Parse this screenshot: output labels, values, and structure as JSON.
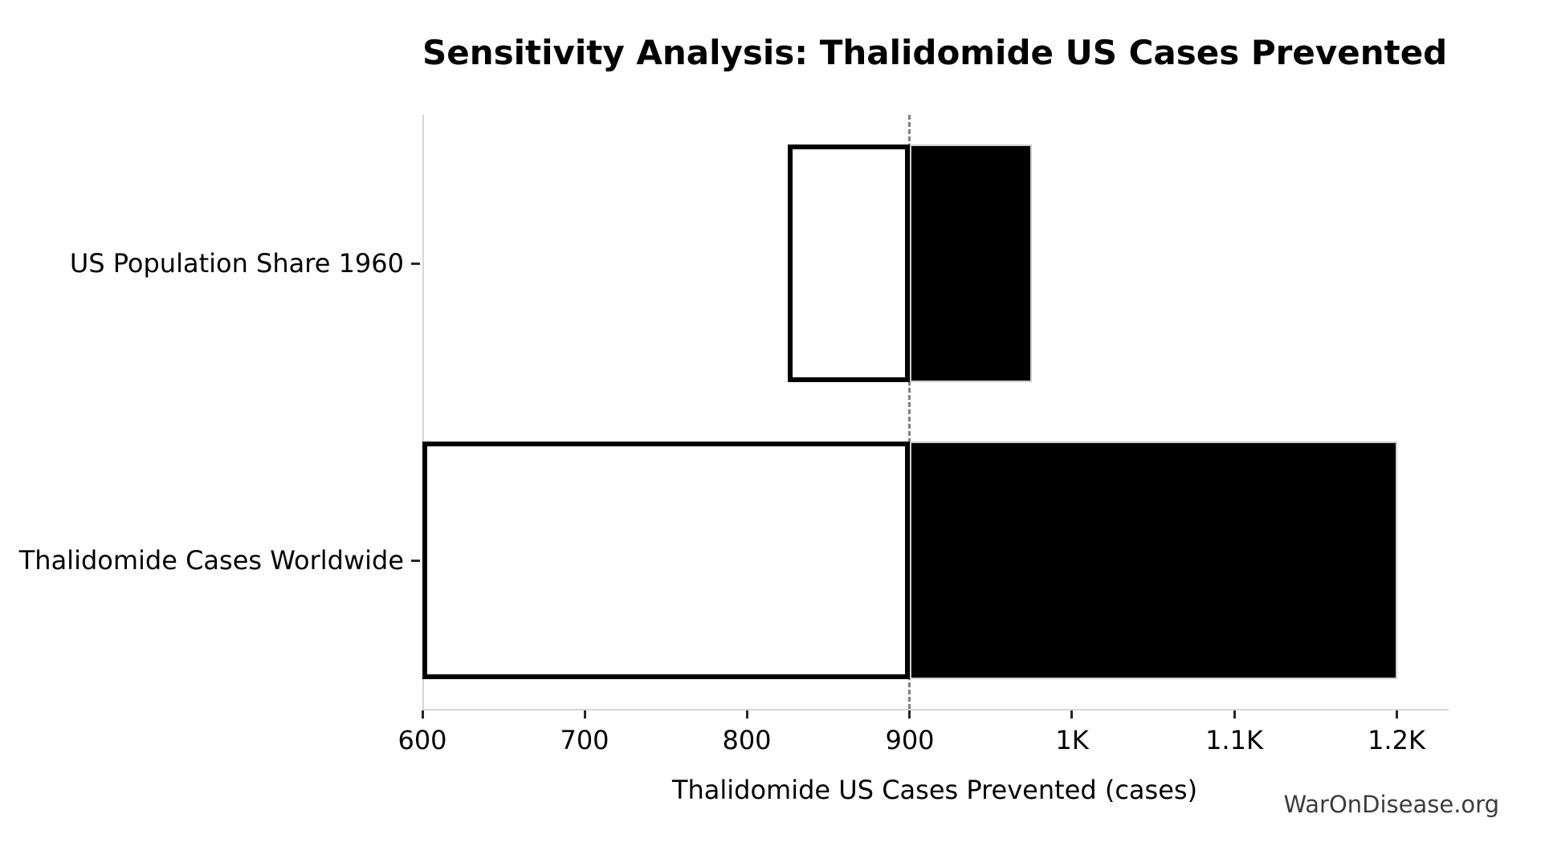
{
  "watermark": "WarOnDisease.org",
  "chart_data": {
    "type": "bar",
    "subtype": "tornado-sensitivity",
    "orientation": "horizontal",
    "title": "Sensitivity Analysis: Thalidomide US Cases Prevented",
    "xlabel": "Thalidomide US Cases Prevented (cases)",
    "ylabel": "",
    "baseline": 900,
    "xlim": [
      600,
      1231
    ],
    "grid": "off",
    "legend": "none",
    "categories": [
      "US Population Share 1960",
      "Thalidomide Cases Worldwide"
    ],
    "bars": [
      {
        "category": "US Population Share 1960",
        "low": 825,
        "high": 975
      },
      {
        "category": "Thalidomide Cases Worldwide",
        "low": 600,
        "high": 1200
      }
    ],
    "x_ticks": [
      {
        "value": 600,
        "label": "600"
      },
      {
        "value": 700,
        "label": "700"
      },
      {
        "value": 800,
        "label": "800"
      },
      {
        "value": 900,
        "label": "900"
      },
      {
        "value": 1000,
        "label": "1K"
      },
      {
        "value": 1100,
        "label": "1.1K"
      },
      {
        "value": 1200,
        "label": "1.2K"
      }
    ],
    "colors": {
      "below_baseline_fill": "#ffffff",
      "below_baseline_edge": "#000000",
      "above_baseline_fill": "#000000",
      "above_baseline_edge": "#cccccc",
      "baseline_line": "#7f7f7f",
      "spine": "#d6d6d6",
      "tick_mark": "#262626",
      "text": "#000000",
      "watermark_text": "#3c3c3c"
    }
  }
}
